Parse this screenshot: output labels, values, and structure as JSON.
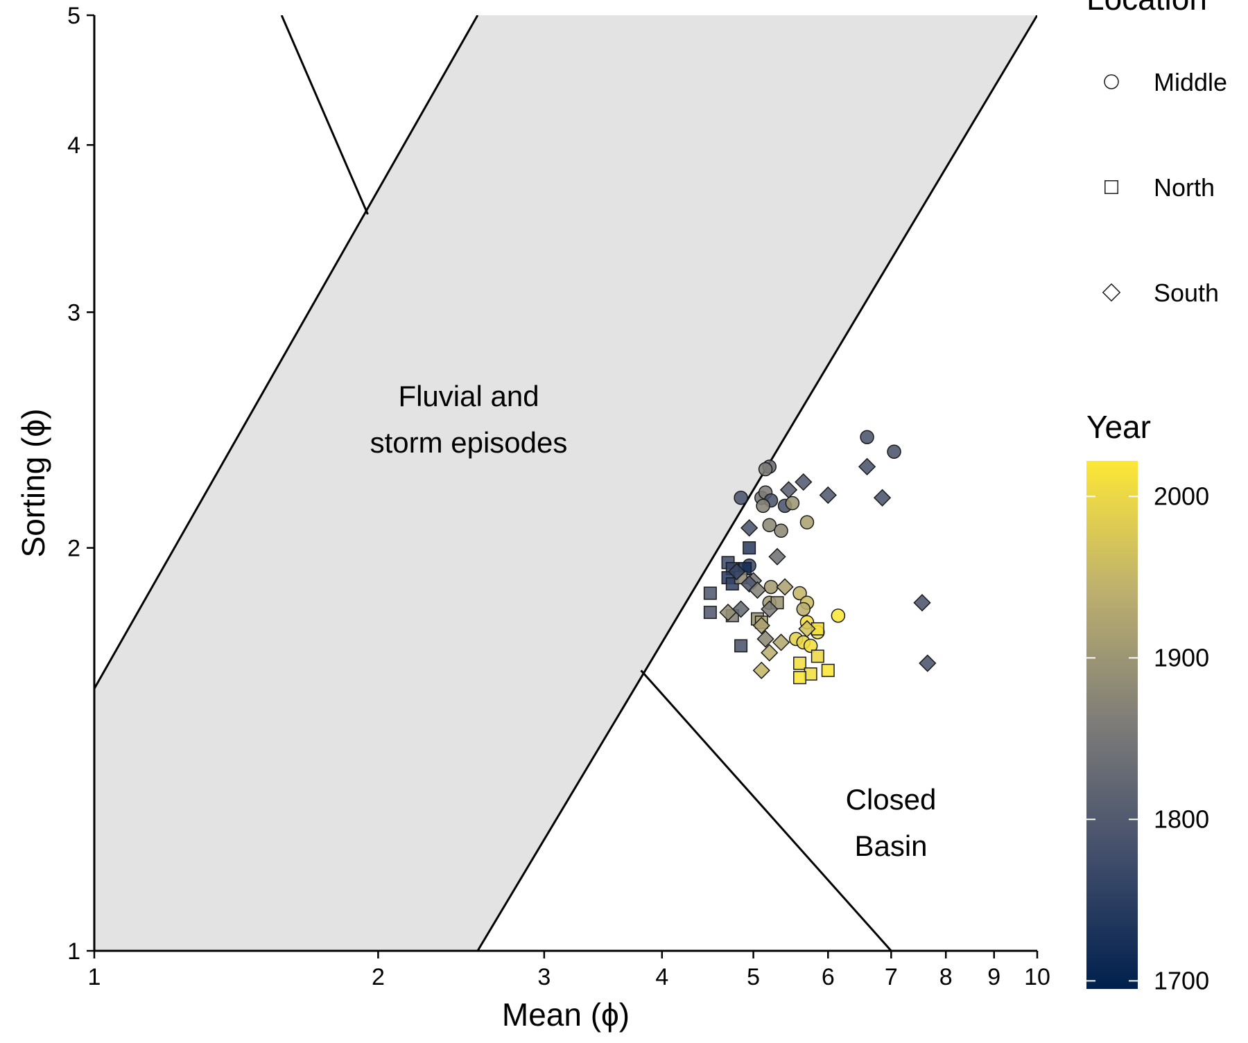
{
  "chart_data": {
    "type": "scatter",
    "x_scale": "log",
    "y_scale": "log",
    "xlabel": "Mean (ϕ)",
    "ylabel": "Sorting (ϕ)",
    "xlim": [
      1,
      10
    ],
    "ylim": [
      1,
      5
    ],
    "x_ticks": [
      1,
      2,
      3,
      4,
      5,
      6,
      7,
      8,
      9,
      10
    ],
    "y_ticks": [
      1,
      2,
      3,
      4,
      5
    ],
    "grid": false,
    "region_labels": {
      "fluvial": [
        "Fluvial and",
        "storm episodes"
      ],
      "closed": [
        "Closed",
        "Basin"
      ]
    },
    "shape_legend": {
      "title": "Location",
      "entries": [
        {
          "label": "Middle",
          "shape": "circle"
        },
        {
          "label": "North",
          "shape": "square"
        },
        {
          "label": "South",
          "shape": "diamond"
        }
      ]
    },
    "color_legend": {
      "title": "Year",
      "range": [
        1695,
        2022
      ],
      "ticks": [
        1700,
        1800,
        1900,
        2000
      ],
      "colors": [
        "#00204d",
        "#414d6b",
        "#7c7b78",
        "#bcaf6f",
        "#fde737"
      ]
    },
    "boundaries": {
      "fluvial_band_left": [
        [
          1,
          1.57
        ],
        [
          2.55,
          5
        ]
      ],
      "fluvial_band_right": [
        [
          2.55,
          1
        ],
        [
          10,
          5
        ]
      ],
      "upper_line": [
        [
          1.95,
          3.55
        ],
        [
          1.58,
          5
        ]
      ],
      "lower_line": [
        [
          3.8,
          1.62
        ],
        [
          7,
          1
        ]
      ],
      "band_fill": "#e3e3e3"
    },
    "series": [
      {
        "name": "Middle",
        "shape": "circle",
        "points": [
          {
            "x": 6.6,
            "y": 2.42,
            "year": 1790
          },
          {
            "x": 7.05,
            "y": 2.36,
            "year": 1790
          },
          {
            "x": 5.2,
            "y": 2.3,
            "year": 1830
          },
          {
            "x": 5.15,
            "y": 2.29,
            "year": 1860
          },
          {
            "x": 4.85,
            "y": 2.18,
            "year": 1790
          },
          {
            "x": 5.1,
            "y": 2.18,
            "year": 1850
          },
          {
            "x": 5.15,
            "y": 2.2,
            "year": 1860
          },
          {
            "x": 5.22,
            "y": 2.17,
            "year": 1790
          },
          {
            "x": 5.12,
            "y": 2.15,
            "year": 1870
          },
          {
            "x": 5.4,
            "y": 2.15,
            "year": 1790
          },
          {
            "x": 5.5,
            "y": 2.16,
            "year": 1900
          },
          {
            "x": 5.2,
            "y": 2.08,
            "year": 1880
          },
          {
            "x": 5.35,
            "y": 2.06,
            "year": 1880
          },
          {
            "x": 5.7,
            "y": 2.09,
            "year": 1920
          },
          {
            "x": 4.95,
            "y": 1.94,
            "year": 1770
          },
          {
            "x": 5.22,
            "y": 1.87,
            "year": 1910
          },
          {
            "x": 5.6,
            "y": 1.85,
            "year": 1950
          },
          {
            "x": 5.2,
            "y": 1.82,
            "year": 1910
          },
          {
            "x": 5.7,
            "y": 1.82,
            "year": 1960
          },
          {
            "x": 5.65,
            "y": 1.8,
            "year": 1940
          },
          {
            "x": 6.15,
            "y": 1.78,
            "year": 2020
          },
          {
            "x": 5.7,
            "y": 1.76,
            "year": 2010
          },
          {
            "x": 5.85,
            "y": 1.73,
            "year": 2010
          },
          {
            "x": 5.55,
            "y": 1.71,
            "year": 1990
          },
          {
            "x": 5.65,
            "y": 1.7,
            "year": 2000
          },
          {
            "x": 5.75,
            "y": 1.69,
            "year": 2010
          }
        ]
      },
      {
        "name": "North",
        "shape": "square",
        "points": [
          {
            "x": 4.95,
            "y": 2.0,
            "year": 1750
          },
          {
            "x": 4.7,
            "y": 1.95,
            "year": 1780
          },
          {
            "x": 4.75,
            "y": 1.93,
            "year": 1760
          },
          {
            "x": 4.9,
            "y": 1.93,
            "year": 1720
          },
          {
            "x": 4.7,
            "y": 1.9,
            "year": 1750
          },
          {
            "x": 4.75,
            "y": 1.88,
            "year": 1760
          },
          {
            "x": 4.85,
            "y": 1.9,
            "year": 1880
          },
          {
            "x": 4.5,
            "y": 1.85,
            "year": 1800
          },
          {
            "x": 5.3,
            "y": 1.82,
            "year": 1900
          },
          {
            "x": 4.5,
            "y": 1.79,
            "year": 1800
          },
          {
            "x": 4.75,
            "y": 1.78,
            "year": 1870
          },
          {
            "x": 5.05,
            "y": 1.77,
            "year": 1900
          },
          {
            "x": 5.1,
            "y": 1.76,
            "year": 1920
          },
          {
            "x": 5.85,
            "y": 1.74,
            "year": 2010
          },
          {
            "x": 4.85,
            "y": 1.69,
            "year": 1790
          },
          {
            "x": 5.85,
            "y": 1.66,
            "year": 2000
          },
          {
            "x": 5.6,
            "y": 1.64,
            "year": 2010
          },
          {
            "x": 6.0,
            "y": 1.62,
            "year": 2020
          },
          {
            "x": 5.75,
            "y": 1.61,
            "year": 2010
          },
          {
            "x": 5.6,
            "y": 1.6,
            "year": 2020
          }
        ]
      },
      {
        "name": "South",
        "shape": "diamond",
        "points": [
          {
            "x": 6.6,
            "y": 2.3,
            "year": 1790
          },
          {
            "x": 5.65,
            "y": 2.24,
            "year": 1800
          },
          {
            "x": 5.45,
            "y": 2.21,
            "year": 1810
          },
          {
            "x": 6.0,
            "y": 2.19,
            "year": 1800
          },
          {
            "x": 6.85,
            "y": 2.18,
            "year": 1790
          },
          {
            "x": 4.95,
            "y": 2.07,
            "year": 1790
          },
          {
            "x": 5.3,
            "y": 1.97,
            "year": 1840
          },
          {
            "x": 4.8,
            "y": 1.92,
            "year": 1760
          },
          {
            "x": 5.0,
            "y": 1.89,
            "year": 1850
          },
          {
            "x": 4.95,
            "y": 1.88,
            "year": 1800
          },
          {
            "x": 5.05,
            "y": 1.86,
            "year": 1870
          },
          {
            "x": 5.4,
            "y": 1.87,
            "year": 1920
          },
          {
            "x": 7.55,
            "y": 1.82,
            "year": 1790
          },
          {
            "x": 5.2,
            "y": 1.8,
            "year": 1860
          },
          {
            "x": 4.85,
            "y": 1.8,
            "year": 1830
          },
          {
            "x": 4.7,
            "y": 1.79,
            "year": 1890
          },
          {
            "x": 5.1,
            "y": 1.75,
            "year": 1920
          },
          {
            "x": 5.7,
            "y": 1.74,
            "year": 1970
          },
          {
            "x": 5.15,
            "y": 1.71,
            "year": 1880
          },
          {
            "x": 5.35,
            "y": 1.7,
            "year": 1930
          },
          {
            "x": 5.2,
            "y": 1.67,
            "year": 1940
          },
          {
            "x": 7.65,
            "y": 1.64,
            "year": 1790
          },
          {
            "x": 5.1,
            "y": 1.62,
            "year": 1950
          }
        ]
      }
    ]
  }
}
